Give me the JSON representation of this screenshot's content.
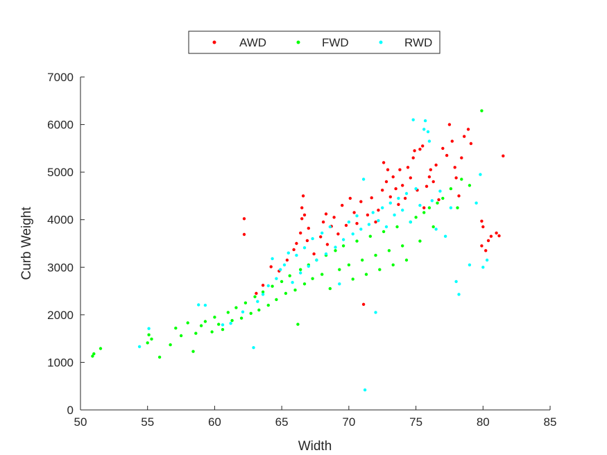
{
  "chart_data": {
    "type": "scatter",
    "title": "",
    "xlabel": "Width",
    "ylabel": "Curb Weight",
    "xlim": [
      50,
      85
    ],
    "ylim": [
      0,
      7000
    ],
    "xticks": [
      50,
      55,
      60,
      65,
      70,
      75,
      80,
      85
    ],
    "yticks": [
      0,
      1000,
      2000,
      3000,
      4000,
      5000,
      6000,
      7000
    ],
    "grid": false,
    "legend_position": "top-center",
    "series": [
      {
        "name": "AWD",
        "color": "#ff0000",
        "points": [
          [
            62.2,
            4020
          ],
          [
            62.2,
            3690
          ],
          [
            63.1,
            2450
          ],
          [
            63.6,
            2620
          ],
          [
            64.2,
            3010
          ],
          [
            64.8,
            2920
          ],
          [
            65.4,
            3150
          ],
          [
            65.9,
            3370
          ],
          [
            66.1,
            3500
          ],
          [
            66.4,
            3720
          ],
          [
            66.5,
            4020
          ],
          [
            66.5,
            4250
          ],
          [
            66.6,
            4500
          ],
          [
            66.7,
            4100
          ],
          [
            66.9,
            3560
          ],
          [
            67.0,
            3820
          ],
          [
            67.4,
            3280
          ],
          [
            67.9,
            3640
          ],
          [
            68.1,
            3950
          ],
          [
            68.3,
            4120
          ],
          [
            68.4,
            3480
          ],
          [
            68.7,
            3860
          ],
          [
            68.9,
            4050
          ],
          [
            69.2,
            3700
          ],
          [
            69.5,
            4300
          ],
          [
            69.8,
            3880
          ],
          [
            70.1,
            4450
          ],
          [
            70.4,
            4150
          ],
          [
            70.6,
            3920
          ],
          [
            70.9,
            4380
          ],
          [
            71.1,
            2220
          ],
          [
            71.4,
            4100
          ],
          [
            71.7,
            4460
          ],
          [
            72.0,
            3950
          ],
          [
            72.2,
            4200
          ],
          [
            72.5,
            4620
          ],
          [
            72.6,
            5200
          ],
          [
            72.8,
            4800
          ],
          [
            72.9,
            5050
          ],
          [
            73.1,
            4480
          ],
          [
            73.3,
            4900
          ],
          [
            73.5,
            4650
          ],
          [
            73.7,
            4320
          ],
          [
            73.8,
            5050
          ],
          [
            74.0,
            4720
          ],
          [
            74.2,
            4450
          ],
          [
            74.4,
            5100
          ],
          [
            74.6,
            4880
          ],
          [
            74.8,
            5300
          ],
          [
            74.9,
            5450
          ],
          [
            75.1,
            4620
          ],
          [
            75.3,
            5480
          ],
          [
            75.5,
            5550
          ],
          [
            75.6,
            4250
          ],
          [
            75.8,
            4700
          ],
          [
            76.0,
            4900
          ],
          [
            76.1,
            5050
          ],
          [
            76.3,
            4800
          ],
          [
            76.5,
            5150
          ],
          [
            76.7,
            4420
          ],
          [
            77.0,
            5500
          ],
          [
            77.3,
            5350
          ],
          [
            77.5,
            6000
          ],
          [
            77.7,
            5650
          ],
          [
            77.9,
            5100
          ],
          [
            78.0,
            4880
          ],
          [
            78.2,
            4500
          ],
          [
            78.4,
            5300
          ],
          [
            78.6,
            5750
          ],
          [
            78.9,
            5900
          ],
          [
            79.1,
            5600
          ],
          [
            79.9,
            3970
          ],
          [
            80.0,
            3850
          ],
          [
            79.9,
            3450
          ],
          [
            80.2,
            3350
          ],
          [
            80.4,
            3560
          ],
          [
            80.6,
            3650
          ],
          [
            81.0,
            3720
          ],
          [
            81.2,
            3660
          ],
          [
            81.5,
            5340
          ]
        ]
      },
      {
        "name": "FWD",
        "color": "#00ff00",
        "points": [
          [
            50.9,
            1130
          ],
          [
            51.0,
            1180
          ],
          [
            51.5,
            1290
          ],
          [
            55.0,
            1410
          ],
          [
            55.1,
            1580
          ],
          [
            55.3,
            1490
          ],
          [
            55.9,
            1110
          ],
          [
            56.7,
            1370
          ],
          [
            57.1,
            1720
          ],
          [
            57.5,
            1560
          ],
          [
            58.0,
            1830
          ],
          [
            58.4,
            1230
          ],
          [
            58.6,
            1610
          ],
          [
            59.0,
            1770
          ],
          [
            59.3,
            1860
          ],
          [
            59.8,
            1640
          ],
          [
            60.0,
            1950
          ],
          [
            60.3,
            1800
          ],
          [
            60.6,
            1690
          ],
          [
            61.0,
            2050
          ],
          [
            61.3,
            1880
          ],
          [
            61.6,
            2150
          ],
          [
            62.0,
            1930
          ],
          [
            62.3,
            2250
          ],
          [
            62.7,
            2030
          ],
          [
            63.0,
            2380
          ],
          [
            63.3,
            2100
          ],
          [
            63.6,
            2480
          ],
          [
            64.0,
            2200
          ],
          [
            64.3,
            2600
          ],
          [
            64.6,
            2320
          ],
          [
            65.0,
            2700
          ],
          [
            65.3,
            2450
          ],
          [
            65.6,
            2820
          ],
          [
            66.0,
            2520
          ],
          [
            66.2,
            1800
          ],
          [
            66.4,
            2950
          ],
          [
            66.7,
            2650
          ],
          [
            67.0,
            3050
          ],
          [
            67.3,
            2760
          ],
          [
            67.6,
            3150
          ],
          [
            68.0,
            2850
          ],
          [
            68.3,
            3250
          ],
          [
            68.6,
            2550
          ],
          [
            69.0,
            3350
          ],
          [
            69.3,
            2950
          ],
          [
            69.6,
            3450
          ],
          [
            70.0,
            3050
          ],
          [
            70.3,
            2750
          ],
          [
            70.6,
            3550
          ],
          [
            71.0,
            3150
          ],
          [
            71.3,
            2850
          ],
          [
            71.6,
            3650
          ],
          [
            72.0,
            3250
          ],
          [
            72.3,
            2950
          ],
          [
            72.6,
            3750
          ],
          [
            73.0,
            3350
          ],
          [
            73.3,
            3050
          ],
          [
            73.6,
            3850
          ],
          [
            74.0,
            3450
          ],
          [
            74.3,
            3150
          ],
          [
            74.6,
            3950
          ],
          [
            75.0,
            4050
          ],
          [
            75.3,
            3550
          ],
          [
            75.6,
            4150
          ],
          [
            76.0,
            4250
          ],
          [
            76.3,
            3850
          ],
          [
            76.6,
            4350
          ],
          [
            77.0,
            4450
          ],
          [
            77.6,
            4650
          ],
          [
            78.1,
            4250
          ],
          [
            78.4,
            4850
          ],
          [
            79.0,
            4720
          ],
          [
            79.9,
            6290
          ]
        ]
      },
      {
        "name": "RWD",
        "color": "#00ffff",
        "points": [
          [
            54.4,
            1330
          ],
          [
            55.1,
            1710
          ],
          [
            58.8,
            2210
          ],
          [
            59.3,
            2200
          ],
          [
            60.6,
            1790
          ],
          [
            61.2,
            1820
          ],
          [
            62.1,
            2060
          ],
          [
            62.9,
            1310
          ],
          [
            63.2,
            2280
          ],
          [
            63.6,
            2430
          ],
          [
            64.0,
            2610
          ],
          [
            64.3,
            3180
          ],
          [
            64.6,
            2760
          ],
          [
            64.9,
            2950
          ],
          [
            65.2,
            3050
          ],
          [
            65.5,
            3300
          ],
          [
            65.8,
            2680
          ],
          [
            66.1,
            3250
          ],
          [
            66.4,
            2880
          ],
          [
            66.7,
            3410
          ],
          [
            67.0,
            3020
          ],
          [
            67.3,
            3600
          ],
          [
            67.6,
            3150
          ],
          [
            68.0,
            3720
          ],
          [
            68.3,
            3280
          ],
          [
            68.6,
            3850
          ],
          [
            69.0,
            3420
          ],
          [
            69.3,
            2650
          ],
          [
            69.6,
            3580
          ],
          [
            70.0,
            3950
          ],
          [
            70.3,
            3700
          ],
          [
            70.6,
            4080
          ],
          [
            70.9,
            3800
          ],
          [
            71.1,
            4850
          ],
          [
            71.2,
            420
          ],
          [
            71.5,
            3900
          ],
          [
            71.8,
            4150
          ],
          [
            72.0,
            2050
          ],
          [
            72.2,
            3980
          ],
          [
            72.5,
            4250
          ],
          [
            72.8,
            3850
          ],
          [
            73.1,
            4350
          ],
          [
            73.4,
            4100
          ],
          [
            73.7,
            4450
          ],
          [
            74.0,
            4200
          ],
          [
            74.3,
            4550
          ],
          [
            74.6,
            3950
          ],
          [
            74.8,
            6100
          ],
          [
            75.0,
            4650
          ],
          [
            75.3,
            4300
          ],
          [
            75.6,
            5900
          ],
          [
            75.7,
            6080
          ],
          [
            75.9,
            5850
          ],
          [
            76.0,
            5650
          ],
          [
            76.2,
            4400
          ],
          [
            76.5,
            3800
          ],
          [
            76.8,
            4600
          ],
          [
            77.2,
            3650
          ],
          [
            77.6,
            4250
          ],
          [
            78.0,
            2700
          ],
          [
            78.2,
            2430
          ],
          [
            79.0,
            3050
          ],
          [
            79.5,
            4350
          ],
          [
            79.8,
            4950
          ],
          [
            80.0,
            3000
          ],
          [
            80.3,
            3150
          ]
        ]
      }
    ]
  }
}
